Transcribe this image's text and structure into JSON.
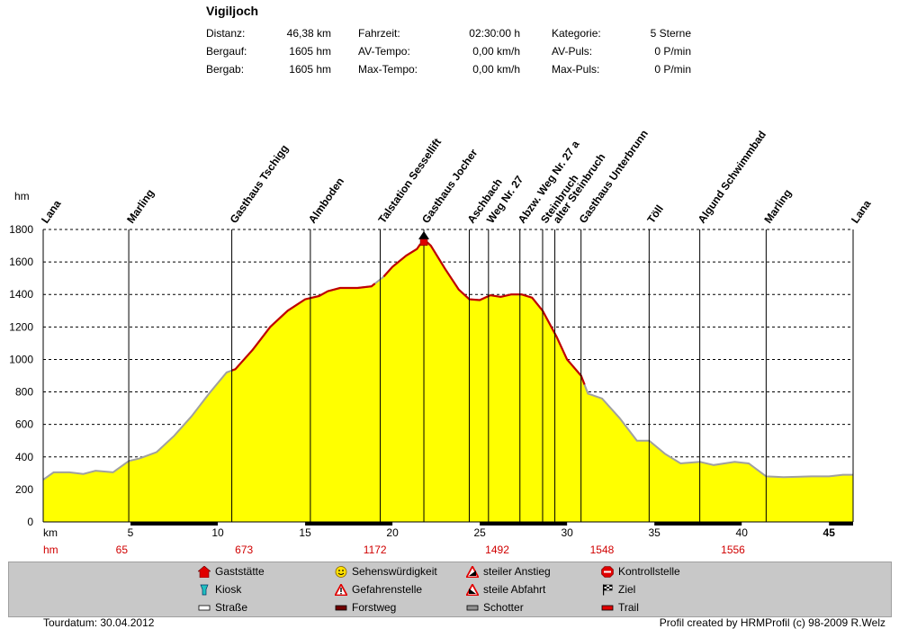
{
  "header": {
    "title": "Vigiljoch",
    "stats": [
      {
        "label": "Distanz:",
        "value": "46,38 km"
      },
      {
        "label": "Bergauf:",
        "value": "1605 hm"
      },
      {
        "label": "Bergab:",
        "value": "1605 hm"
      },
      {
        "label": "Fahrzeit:",
        "value": "02:30:00 h"
      },
      {
        "label": "AV-Tempo:",
        "value": "0,00 km/h"
      },
      {
        "label": "Max-Tempo:",
        "value": "0,00 km/h"
      },
      {
        "label": "Kategorie:",
        "value": "5 Sterne"
      },
      {
        "label": "AV-Puls:",
        "value": "0 P/min"
      },
      {
        "label": "Max-Puls:",
        "value": "0 P/min"
      }
    ]
  },
  "chart_data": {
    "type": "area",
    "title": "Vigiljoch",
    "xlabel": "km",
    "ylabel": "hm",
    "xlim": [
      0,
      46.38
    ],
    "ylim": [
      0,
      1800
    ],
    "x_ticks": [
      "5",
      "10",
      "15",
      "20",
      "25",
      "30",
      "35",
      "40",
      "45"
    ],
    "x_tick_values": [
      5,
      10,
      15,
      20,
      25,
      30,
      35,
      40,
      45
    ],
    "y_ticks": [
      "0",
      "200",
      "400",
      "600",
      "800",
      "1000",
      "1200",
      "1400",
      "1600",
      "1800"
    ],
    "y_tick_values": [
      0,
      200,
      400,
      600,
      800,
      1000,
      1200,
      1400,
      1600,
      1800
    ],
    "grid": true,
    "fill_color": "#ffff00",
    "profile": {
      "x": [
        0,
        0.6,
        1.5,
        2.3,
        3.0,
        4.0,
        4.9,
        5.5,
        6.5,
        7.5,
        8.5,
        9.5,
        10.5,
        11.0,
        12.0,
        13.0,
        14.0,
        15.0,
        15.8,
        16.3,
        17.0,
        18.0,
        18.8,
        19.5,
        20.0,
        20.8,
        21.4,
        21.8,
        22.2,
        23.0,
        23.8,
        24.4,
        25.0,
        25.6,
        26.2,
        26.8,
        27.4,
        28.0,
        28.6,
        29.4,
        30.0,
        30.8,
        31.2,
        32.0,
        33.0,
        34.0,
        34.7,
        35.6,
        36.5,
        37.6,
        38.4,
        39.6,
        40.4,
        41.4,
        42.4,
        44.0,
        45.0,
        45.8,
        46.38
      ],
      "y": [
        260,
        305,
        305,
        295,
        315,
        305,
        375,
        390,
        430,
        530,
        650,
        790,
        920,
        940,
        1060,
        1200,
        1300,
        1370,
        1390,
        1420,
        1440,
        1440,
        1450,
        1510,
        1570,
        1640,
        1680,
        1740,
        1700,
        1560,
        1430,
        1370,
        1365,
        1395,
        1385,
        1400,
        1400,
        1380,
        1300,
        1140,
        1000,
        900,
        790,
        760,
        640,
        500,
        500,
        420,
        360,
        370,
        350,
        370,
        360,
        280,
        275,
        280,
        280,
        290,
        290
      ],
      "red_segments": [
        [
          10.8,
          19.0
        ],
        [
          19.5,
          21.6
        ],
        [
          22.0,
          31.0
        ]
      ]
    },
    "waypoints": [
      {
        "name": "Lana",
        "km": 0.0
      },
      {
        "name": "Marling",
        "km": 4.9
      },
      {
        "name": "Gasthaus Tschigg",
        "km": 10.8
      },
      {
        "name": "Almboden",
        "km": 15.3
      },
      {
        "name": "Talstation Sessellift",
        "km": 19.3
      },
      {
        "name": "Gasthaus Jocher",
        "km": 21.8
      },
      {
        "name": "Aschbach",
        "km": 24.4
      },
      {
        "name": "Weg Nr. 27",
        "km": 25.5
      },
      {
        "name": "Abzw. Weg Nr. 27 a",
        "km": 27.3
      },
      {
        "name": "Steinbruch",
        "km": 28.6
      },
      {
        "name": "alter Steinbruch",
        "km": 29.3
      },
      {
        "name": "Gasthaus Unterbrunn",
        "km": 30.8
      },
      {
        "name": "Töll",
        "km": 34.7
      },
      {
        "name": "Algund Schwimmbad",
        "km": 37.6
      },
      {
        "name": "Marling",
        "km": 41.4
      },
      {
        "name": "Lana",
        "km": 46.38
      }
    ],
    "surface_bar": [
      {
        "from": 5,
        "to": 10
      },
      {
        "from": 15,
        "to": 20
      },
      {
        "from": 25,
        "to": 30
      },
      {
        "from": 35,
        "to": 40
      },
      {
        "from": 45,
        "to": 46.38
      }
    ],
    "hm_row": {
      "label": "hm",
      "values": [
        "65",
        "673",
        "1172",
        "1492",
        "1548",
        "1556"
      ],
      "km_positions": [
        4.5,
        11.5,
        19.0,
        26.0,
        32.0,
        39.5
      ]
    },
    "km_row": {
      "label": "km",
      "highlight": "45"
    }
  },
  "legend": {
    "items": [
      {
        "label": "Gaststätte",
        "icon": "house-icon"
      },
      {
        "label": "Kiosk",
        "icon": "kiosk-icon"
      },
      {
        "label": "Straße",
        "icon": "road-icon"
      },
      {
        "label": "Sehenswürdigkeit",
        "icon": "smiley-icon"
      },
      {
        "label": "Gefahrenstelle",
        "icon": "warning-icon"
      },
      {
        "label": "Forstweg",
        "icon": "forest-road-icon"
      },
      {
        "label": "steiler Anstieg",
        "icon": "steep-climb-icon"
      },
      {
        "label": "steile Abfahrt",
        "icon": "steep-descent-icon"
      },
      {
        "label": "Schotter",
        "icon": "gravel-icon"
      },
      {
        "label": "Kontrollstelle",
        "icon": "stop-icon"
      },
      {
        "label": "Ziel",
        "icon": "finish-flag-icon"
      },
      {
        "label": "Trail",
        "icon": "trail-icon"
      }
    ]
  },
  "footer": {
    "date": "Tourdatum: 30.04.2012",
    "credit": "Profil created by HRMProfil (c) 98-2009 R.Welz"
  }
}
